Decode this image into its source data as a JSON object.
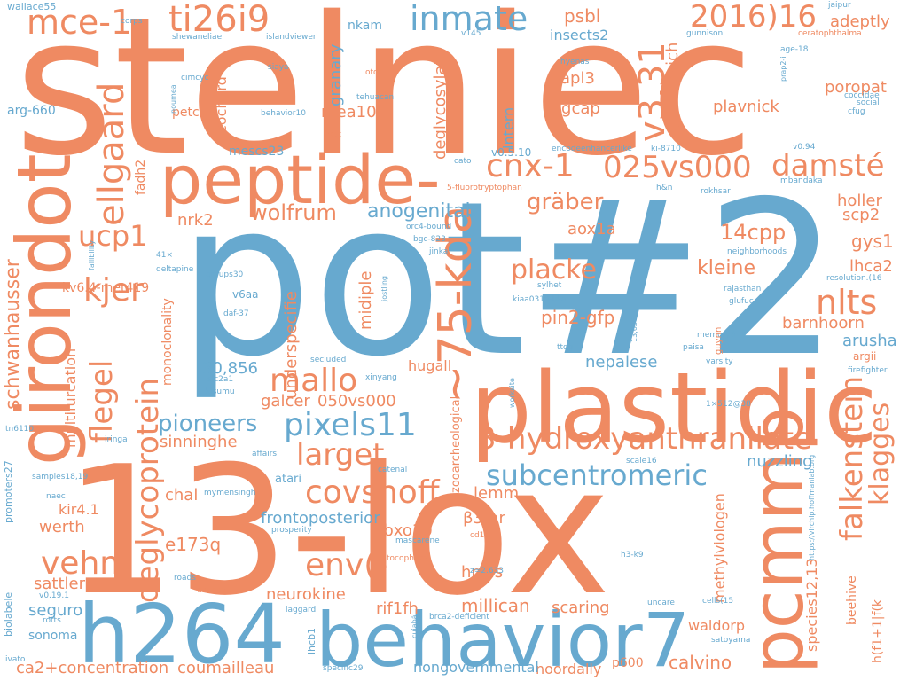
{
  "colors": {
    "orange": "#ef8a62",
    "blue": "#67a9cf",
    "background": "#ffffff"
  },
  "words": {
    "stelniec": "stelniec",
    "pot2": "pot#2",
    "lox": "13-lox",
    "h264": "h264",
    "behavior7": "behavior7",
    "plastidic": "plastidic",
    "peptide": "peptide-",
    "girondot": "girondot",
    "pcmmp": "pcmmp",
    "kda": "~75-kda",
    "inmate": "inmate",
    "ti26i9": "ti26i9",
    "mce1": "mce-1",
    "y2016": "2016)16",
    "v331": "v3.31",
    "cnx1": "cnx-1",
    "vs025": "025vs000",
    "damste": "damsté",
    "ellgaard": "ellgaard",
    "ucp1": "ucp1",
    "kjer": "kjer",
    "flegel": "flegel",
    "deglycoprotein": "deglycoprotein",
    "hydroxy": "3-hydroxyanthranilate",
    "subcentromeric": "subcentromeric",
    "pixels11": "pixels11",
    "pioneers": "pioneers",
    "mallo": "mallo",
    "larget": "larget",
    "covshoff": "covshoff",
    "vehn": "vehn",
    "env": "env(-",
    "nlts": "nlts",
    "falkenstein": "falkenstein",
    "klagges": "klagges",
    "placke": "placke",
    "graber": "gräber",
    "wolfrum": "wolfrum",
    "anogenital": "anogenital",
    "cpp14": "14cpp",
    "kleine": "kleine",
    "pin2gfp": "pin2-gfp",
    "aox1a": "aox1a",
    "holler": "holler",
    "scp2": "scp2",
    "gys1": "gys1",
    "lhca2": "lhca2",
    "barnhoorn": "barnhoorn",
    "arusha": "arusha",
    "nepalese": "nepalese",
    "nrk2": "nrk2",
    "underspecifie": "underspecifie",
    "midiple": "midiple",
    "galcer": "galcer",
    "vs050": "050vs000",
    "n30856": "30,856",
    "sinninghe": "sinninghe",
    "frontoposterior": "frontoposterior",
    "nuzzling": "nuzzling",
    "chal": "chal",
    "e173q": "e173q",
    "kir41": "kir4.1",
    "werth": "werth",
    "sattler": "sattler",
    "seguro": "seguro",
    "sonoma": "sonoma",
    "fbxo30": "fbxo30",
    "hpcls": "hpcls",
    "b3ar": "β3-ar",
    "lemm": "lemm",
    "neurokine": "neurokine",
    "millican": "millican",
    "rif1fh": "rif1fh",
    "scaring": "scaring",
    "methylviologen": "methylviologen",
    "species1213": "species12,13",
    "beehive": "beehive",
    "hfi": "h(f1+1|f(k",
    "waldorp": "waldorp",
    "calvino": "calvino",
    "p600": "p600",
    "noordally": "noordally",
    "nongovernmental": "nongovernmental",
    "ca2": "ca2+concentration",
    "coumailleau": "coumailleau",
    "schwanhausser": "schwanhausser",
    "multifurcation": "multifurcation",
    "kv64": "kv6.4-met419",
    "monoclonality": "monoclonality",
    "hugall": "hugall",
    "zooarcheological": "zooarcheological",
    "psbl": "psbl",
    "grishkevich": "grishkevich",
    "adeptly": "adeptly",
    "insects2": "insects2",
    "apl3": "apl3",
    "tgcap": "tgcap",
    "poropat": "poropat",
    "plavnick": "plavnick",
    "mea10": "mea10",
    "cochard": "cochard",
    "mescs23": "mescs23",
    "fadh2": "fadh2",
    "granary": "granary",
    "nkam": "nkam",
    "deglycosylate": "deglycosylate",
    "intern": "intern",
    "v0510": "v0.5.10",
    "petc": "petc",
    "arg660": "arg-660",
    "wallace55": "wallace55",
    "corps": "corps",
    "islandviewer": "islandviewer",
    "v145": "v145",
    "shewaneliae": "shewaneliae",
    "gunnison": "gunnison",
    "ceratophthalma": "ceratophthalma",
    "jaipur": "jaipur",
    "hyenas": "hyenas",
    "age18": "age-18",
    "siaya": "siaya",
    "otoa": "otoa",
    "cimcyc": "cimcyc",
    "noumea": "noumea",
    "tehuacan": "tehuacan",
    "behavior10": "behavior10",
    "hcst": "hcst",
    "prap2i": "prap2-i",
    "coccidae": "coccidae",
    "social": "social",
    "cfug": "cfug",
    "encode": "encodeenhancerlike",
    "ki8710": "ki-8710",
    "v094": "v0.94",
    "cato": "cato",
    "fluoro": "5-fluorotryptophan",
    "hn": "h&n",
    "rokhsar": "rokhsar",
    "mbandaka": "mbandaka",
    "orc4": "orc4-bound",
    "bgc823": "bgc-823",
    "jinka": "jinka",
    "fallibility": "fallibility",
    "x41": "41×",
    "deltapine": "deltapine",
    "groups30": "groups30",
    "neighborhoods": "neighborhoods",
    "resolution16": "resolution.(16",
    "rajasthan": "rajasthan",
    "glufuc": "glufuc",
    "sylhet": "sylhet",
    "kiaa0319": "kiaa0319-like",
    "jostling": "jostling",
    "v6aa": "v6aa",
    "daf37": "daf-37",
    "ttdg": "ttdg",
    "n13626": "13,626",
    "memory3": "memory3",
    "paisa": "paisa",
    "varsity": "varsity",
    "guynn": "guynn",
    "argii": "argii",
    "firefighter": "firefighter",
    "secluded": "secluded",
    "xinyang": "xinyang",
    "slc2a1": "slc2a1",
    "kisumu": "kisumu",
    "worksite": "worksite",
    "size1512": "1×512@38",
    "tn6110": "tn6110",
    "iringa": "iringa",
    "affairs": "affairs",
    "catenal": "catenal",
    "scale16": "scale16",
    "samples1819": "samples18,19",
    "promoters27": "promoters27",
    "naec": "naec",
    "atari": "atari",
    "mymensingh": "mymensingh",
    "prosperity": "prosperity",
    "vihrtchip": "https://virchip.hoffmanlab.org",
    "mascarene": "mascarene",
    "cd1d": "cd1d",
    "tocopherol": "tocopherol",
    "z2633": "z=2.633",
    "h3k9": "h3-k9",
    "biolabele": "biolabele",
    "v0191": "v0.19.1",
    "rotts": "rotts",
    "roads": "roads",
    "dirocco": "dirocco",
    "laggard": "laggard",
    "lhcb1": "lhcb1",
    "cuiaba": "cuiabá",
    "brca2": "brca2-deficient",
    "uncare": "uncare",
    "cells15": "cells(15",
    "satoyama": "satoyama",
    "specific29": "specific29",
    "ivato": "ivato"
  }
}
